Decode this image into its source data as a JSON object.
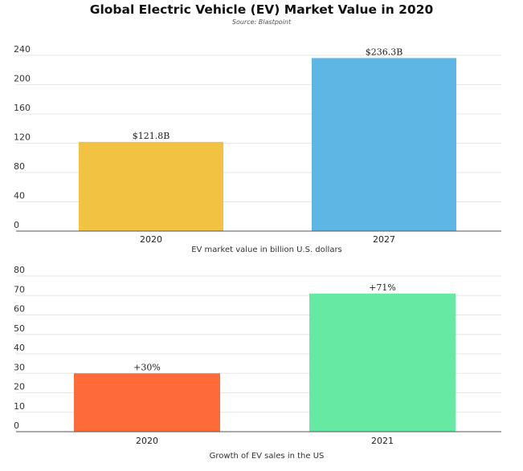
{
  "title": "Global Electric Vehicle (EV) Market Value in 2020",
  "subtitle": "Source: Blastpoint",
  "chart_data": [
    {
      "type": "bar",
      "categories": [
        "2020",
        "2027"
      ],
      "values": [
        121.8,
        236.3
      ],
      "data_labels": [
        "$121.8B",
        "$236.3B"
      ],
      "colors": [
        "#F2C242",
        "#5EB6E4"
      ],
      "xlabel": "EV market value in billion U.S. dollars",
      "ylabel": "",
      "ylim": [
        0,
        240
      ],
      "yticks": [
        0,
        40,
        80,
        120,
        160,
        200,
        240
      ],
      "grid": true
    },
    {
      "type": "bar",
      "categories": [
        "2020",
        "2021"
      ],
      "values": [
        30,
        71
      ],
      "data_labels": [
        "+30%",
        "+71%"
      ],
      "colors": [
        "#FF6A39",
        "#66EAA3"
      ],
      "xlabel": "Growth of EV sales in the US",
      "ylabel": "",
      "ylim": [
        0,
        80
      ],
      "yticks": [
        0,
        10,
        20,
        30,
        40,
        50,
        60,
        70,
        80
      ],
      "grid": true
    }
  ]
}
